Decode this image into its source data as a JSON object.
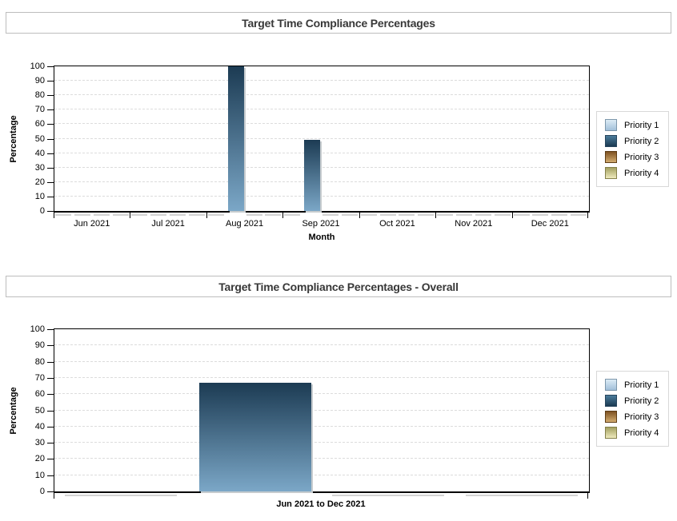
{
  "page_background": "#ffffff",
  "colors": {
    "axis": "#000000",
    "gridline": "#dcdcdc",
    "title_text": "#383838",
    "title_border": "#bdbdbd",
    "legend_border": "#d8d8d8",
    "zero_dash": "#d3d3d3",
    "bar_gradient": {
      "top": "#1c3b53",
      "bottom": "#7ba7c7"
    },
    "bar_shadow": "#c6cbce",
    "series": {
      "Priority 1": {
        "from": "#dcebf5",
        "to": "#a2c0da",
        "border": "#7d97ab"
      },
      "Priority 2": {
        "from": "#4c7c9b",
        "to": "#1a3a52",
        "border": "#27455c"
      },
      "Priority 3": {
        "from": "#7e5222",
        "to": "#d3ac6f",
        "border": "#5e3d16"
      },
      "Priority 4": {
        "from": "#a3a060",
        "to": "#eeeabd",
        "border": "#84804b"
      }
    }
  },
  "chart_data": [
    {
      "type": "bar",
      "title": "Target Time Compliance Percentages",
      "categories": [
        "Jun 2021",
        "Jul 2021",
        "Aug 2021",
        "Sep 2021",
        "Oct 2021",
        "Nov 2021",
        "Dec 2021"
      ],
      "series": [
        {
          "name": "Priority 1",
          "values": [
            0,
            0,
            0,
            0,
            0,
            0,
            0
          ]
        },
        {
          "name": "Priority 2",
          "values": [
            0,
            0,
            100,
            49,
            0,
            0,
            0
          ]
        },
        {
          "name": "Priority 3",
          "values": [
            0,
            0,
            0,
            0,
            0,
            0,
            0
          ]
        },
        {
          "name": "Priority 4",
          "values": [
            0,
            0,
            0,
            0,
            0,
            0,
            0
          ]
        }
      ],
      "xlabel": "Month",
      "ylabel": "Percentage",
      "ylim": [
        0,
        100
      ],
      "ytick_step": 10,
      "grid": "dashed",
      "legend_position": "right",
      "xtick_bold": false
    },
    {
      "type": "bar",
      "title": "Target Time Compliance Percentages - Overall",
      "categories": [
        "Jun 2021 to Dec 2021"
      ],
      "series": [
        {
          "name": "Priority 1",
          "values": [
            0
          ]
        },
        {
          "name": "Priority 2",
          "values": [
            67
          ]
        },
        {
          "name": "Priority 3",
          "values": [
            0
          ]
        },
        {
          "name": "Priority 4",
          "values": [
            0
          ]
        }
      ],
      "xlabel": "",
      "ylabel": "Percentage",
      "ylim": [
        0,
        100
      ],
      "ytick_step": 10,
      "grid": "dashed",
      "legend_position": "right",
      "xtick_bold": true
    }
  ]
}
